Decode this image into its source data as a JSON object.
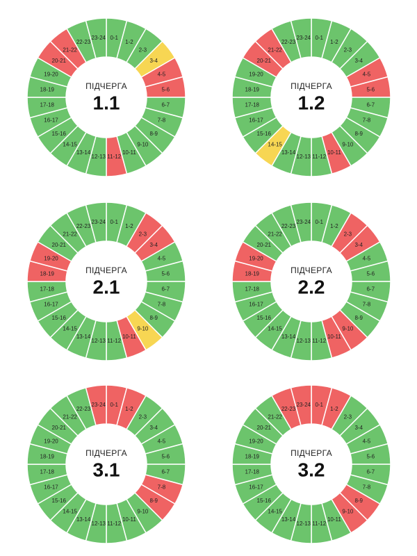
{
  "colors": {
    "on": "#6cc46c",
    "off": "#ef6363",
    "maybe": "#f7d653",
    "center": "#ffffff"
  },
  "hours": [
    "0-1",
    "1-2",
    "2-3",
    "3-4",
    "4-5",
    "5-6",
    "6-7",
    "7-8",
    "8-9",
    "9-10",
    "10-11",
    "11-12",
    "12-13",
    "13-14",
    "14-15",
    "15-16",
    "16-17",
    "17-18",
    "18-19",
    "19-20",
    "20-21",
    "21-22",
    "22-23",
    "23-24"
  ],
  "chart_data": [
    {
      "type": "pie",
      "title": "ПІДЧЕРГА",
      "label": "1.1",
      "status": [
        "on",
        "on",
        "on",
        "maybe",
        "off",
        "off",
        "on",
        "on",
        "on",
        "on",
        "on",
        "off",
        "on",
        "on",
        "on",
        "on",
        "on",
        "on",
        "on",
        "on",
        "off",
        "off",
        "on",
        "on"
      ]
    },
    {
      "type": "pie",
      "title": "ПІДЧЕРГА",
      "label": "1.2",
      "status": [
        "on",
        "on",
        "on",
        "on",
        "off",
        "off",
        "on",
        "on",
        "on",
        "on",
        "off",
        "on",
        "on",
        "on",
        "maybe",
        "on",
        "on",
        "on",
        "on",
        "on",
        "off",
        "off",
        "on",
        "on"
      ]
    },
    {
      "type": "pie",
      "title": "ПІДЧЕРГА",
      "label": "2.1",
      "status": [
        "on",
        "on",
        "off",
        "off",
        "on",
        "on",
        "on",
        "on",
        "on",
        "maybe",
        "off",
        "on",
        "on",
        "on",
        "on",
        "on",
        "on",
        "on",
        "off",
        "off",
        "on",
        "on",
        "on",
        "on"
      ]
    },
    {
      "type": "pie",
      "title": "ПІДЧЕРГА",
      "label": "2.2",
      "status": [
        "on",
        "on",
        "off",
        "off",
        "on",
        "on",
        "on",
        "on",
        "on",
        "off",
        "off",
        "on",
        "on",
        "on",
        "on",
        "on",
        "on",
        "on",
        "off",
        "off",
        "on",
        "on",
        "on",
        "on"
      ]
    },
    {
      "type": "pie",
      "title": "ПІДЧЕРГА",
      "label": "3.1",
      "status": [
        "off",
        "off",
        "on",
        "on",
        "on",
        "on",
        "on",
        "off",
        "off",
        "on",
        "on",
        "on",
        "on",
        "on",
        "on",
        "on",
        "on",
        "on",
        "on",
        "on",
        "on",
        "on",
        "on",
        "off"
      ]
    },
    {
      "type": "pie",
      "title": "ПІДЧЕРГА",
      "label": "3.2",
      "status": [
        "off",
        "off",
        "on",
        "on",
        "on",
        "on",
        "on",
        "on",
        "off",
        "off",
        "on",
        "on",
        "on",
        "on",
        "on",
        "on",
        "on",
        "on",
        "on",
        "on",
        "on",
        "on",
        "off",
        "off"
      ]
    }
  ]
}
